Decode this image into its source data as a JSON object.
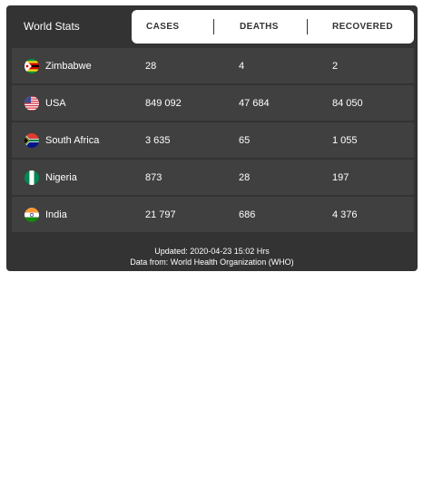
{
  "widget": {
    "title": "World Stats",
    "columns": {
      "cases": "CASES",
      "deaths": "DEATHS",
      "recovered": "RECOVERED"
    },
    "rows": [
      {
        "country": "Zimbabwe",
        "flag": "zimbabwe-flag-icon",
        "cases": "28",
        "deaths": "4",
        "recovered": "2"
      },
      {
        "country": "USA",
        "flag": "usa-flag-icon",
        "cases": "849 092",
        "deaths": "47 684",
        "recovered": "84 050"
      },
      {
        "country": "South Africa",
        "flag": "south-africa-flag-icon",
        "cases": "3 635",
        "deaths": "65",
        "recovered": "1 055"
      },
      {
        "country": "Nigeria",
        "flag": "nigeria-flag-icon",
        "cases": "873",
        "deaths": "28",
        "recovered": "197"
      },
      {
        "country": "India",
        "flag": "india-flag-icon",
        "cases": "21 797",
        "deaths": "686",
        "recovered": "4 376"
      }
    ],
    "footer": {
      "updated": "Updated:  2020-04-23 15:02 Hrs",
      "source": "Data from: World Health Organization (WHO)"
    }
  },
  "colors": {
    "widget_background": "#333333",
    "row_background": "#404040",
    "header_tabs_background": "#ffffff"
  }
}
